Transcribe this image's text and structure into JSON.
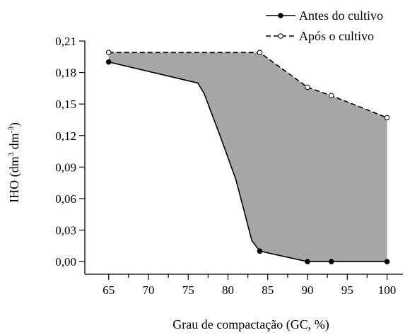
{
  "chart_data": {
    "type": "area",
    "xlabel": "Grau de compactação (GC, %)",
    "ylabel": {
      "base": "IHO (dm",
      "sup1": "3",
      "mid": " dm",
      "sup2": "-3",
      "end": ")"
    },
    "xlim": [
      62,
      102
    ],
    "ylim": [
      -0.012,
      0.21
    ],
    "x_ticks": [
      65,
      70,
      75,
      80,
      85,
      90,
      95,
      100
    ],
    "x_tick_labels": [
      "65",
      "70",
      "75",
      "80",
      "85",
      "90",
      "95",
      "100"
    ],
    "y_ticks": [
      0,
      0.03,
      0.06,
      0.09,
      0.12,
      0.15,
      0.18,
      0.21
    ],
    "y_tick_labels": [
      "0,00",
      "0,03",
      "0,06",
      "0,09",
      "0,12",
      "0,15",
      "0,18",
      "0,21"
    ],
    "legend_position": "top-right",
    "fill_color": "#a6a6a6",
    "series": [
      {
        "name": "Antes do cultivo",
        "line": "solid",
        "marker": "filled-circle",
        "color": "#000000",
        "line_x": [
          65,
          76.2,
          77,
          79,
          81,
          83,
          84,
          90,
          93,
          100
        ],
        "line_y": [
          0.19,
          0.17,
          0.16,
          0.12,
          0.078,
          0.02,
          0.01,
          0,
          0,
          0
        ],
        "marker_x": [
          65,
          84,
          90,
          93,
          100
        ],
        "marker_y": [
          0.19,
          0.01,
          0,
          0,
          0
        ]
      },
      {
        "name": "Após o cultivo",
        "line": "dashed",
        "marker": "open-circle",
        "color": "#000000",
        "line_x": [
          65,
          84,
          90,
          93,
          100
        ],
        "line_y": [
          0.199,
          0.199,
          0.166,
          0.158,
          0.137
        ],
        "marker_x": [
          65,
          84,
          90,
          93,
          100
        ],
        "marker_y": [
          0.199,
          0.199,
          0.166,
          0.158,
          0.137
        ]
      }
    ]
  }
}
